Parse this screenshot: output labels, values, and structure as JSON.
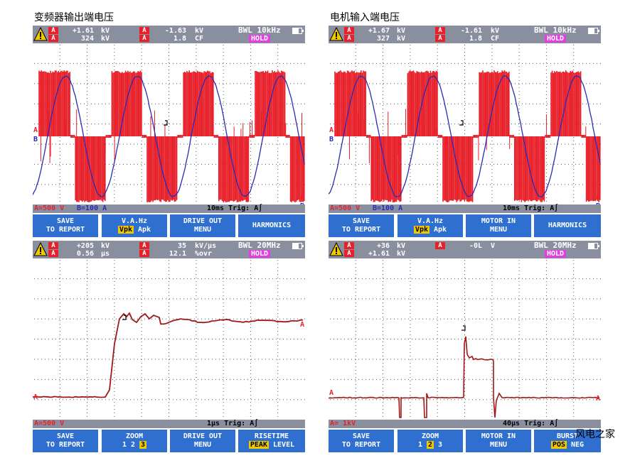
{
  "captions": {
    "top_left": "变频器输出端电压",
    "top_right": "电机输入端电压"
  },
  "panels": [
    {
      "header": {
        "ch1_val1": "+1.61",
        "ch1_unit1": "kV",
        "ch1_val2": "324",
        "ch1_unit2": "kV",
        "ch2_val1": "-1.63",
        "ch2_unit1": "kV",
        "ch2_val2": "1.8",
        "ch2_unit2": "CF",
        "bwl": "BWL 10kHz",
        "hold": "HOLD"
      },
      "status": {
        "a_scale": "A=500 V",
        "b_scale": "B=100 A",
        "timebase": "10ms Trig: A∫"
      },
      "softkeys": [
        {
          "line1": "SAVE",
          "line2": "TO REPORT"
        },
        {
          "line1": "V.A.Hz",
          "line2_hl": "Vpk",
          "line2_rest": " Apk"
        },
        {
          "line1": "DRIVE OUT",
          "line2": "MENU"
        },
        {
          "line1": "HARMONICS",
          "line2": ""
        }
      ],
      "markers": {
        "a": "A",
        "b": "B"
      }
    },
    {
      "header": {
        "ch1_val1": "+1.67",
        "ch1_unit1": "kV",
        "ch1_val2": "327",
        "ch1_unit2": "kV",
        "ch2_val1": "-1.61",
        "ch2_unit1": "kV",
        "ch2_val2": "1.8",
        "ch2_unit2": "CF",
        "bwl": "BWL 10kHz",
        "hold": "HOLD"
      },
      "status": {
        "a_scale": "A=500 V",
        "b_scale": "B=100 A",
        "timebase": "10ms Trig: A∫"
      },
      "softkeys": [
        {
          "line1": "SAVE",
          "line2": "TO REPORT"
        },
        {
          "line1": "V.A.Hz",
          "line2_hl": "Vpk",
          "line2_rest": " Apk"
        },
        {
          "line1": "MOTOR IN",
          "line2": "MENU"
        },
        {
          "line1": "HARMONICS",
          "line2": ""
        }
      ],
      "markers": {
        "a": "A",
        "b": "B"
      }
    },
    {
      "header": {
        "ch1_val1": "+205",
        "ch1_unit1": "kV",
        "ch1_val2": "0.56",
        "ch1_unit2": "µs",
        "ch2_val1": "35",
        "ch2_unit1": "kV/µs",
        "ch2_val2": "12.1",
        "ch2_unit2": "%ovr",
        "bwl": "BWL 20MHz",
        "hold": "HOLD"
      },
      "status": {
        "a_scale": "A=500 V",
        "b_scale": "",
        "timebase": "1µs Trig: A∫"
      },
      "softkeys": [
        {
          "line1": "SAVE",
          "line2": "TO REPORT"
        },
        {
          "line1": "ZOOM",
          "line2_pre": "1  2  ",
          "line2_hl": "3",
          "line2_rest": ""
        },
        {
          "line1": "DRIVE OUT",
          "line2": "MENU"
        },
        {
          "line1": "RISETIME",
          "line2_hl": "PEAK",
          "line2_rest": " LEVEL"
        }
      ],
      "markers": {
        "a": "A"
      }
    },
    {
      "header": {
        "ch1_val1": "+36",
        "ch1_unit1": "kV",
        "ch1_val2": "+1.61",
        "ch1_unit2": "kV",
        "ch2_val1": "-0L",
        "ch2_unit1": "V",
        "ch2_val2": "",
        "ch2_unit2": "",
        "bwl": "BWL 20MHz",
        "hold": "HOLD"
      },
      "status": {
        "a_scale": "A= 1kV",
        "b_scale": "",
        "timebase": "40µs Trig: A∫"
      },
      "softkeys": [
        {
          "line1": "SAVE",
          "line2": "TO REPORT"
        },
        {
          "line1": "ZOOM",
          "line2_pre": "1 ",
          "line2_hl": "2",
          "line2_rest": "  3"
        },
        {
          "line1": "MOTOR IN",
          "line2": "MENU"
        },
        {
          "line1": "BURST",
          "line2_hl": "POS",
          "line2_rest": " NEG"
        }
      ],
      "markers": {
        "a": "A"
      }
    }
  ],
  "watermark": "风电之家",
  "colors": {
    "channel_a": "#e8202a",
    "channel_b": "#2a2ab8",
    "softkey": "#2f6fd0",
    "hold": "#e040e0",
    "highlight": "#f0c800",
    "header": "#8a8fa0"
  }
}
